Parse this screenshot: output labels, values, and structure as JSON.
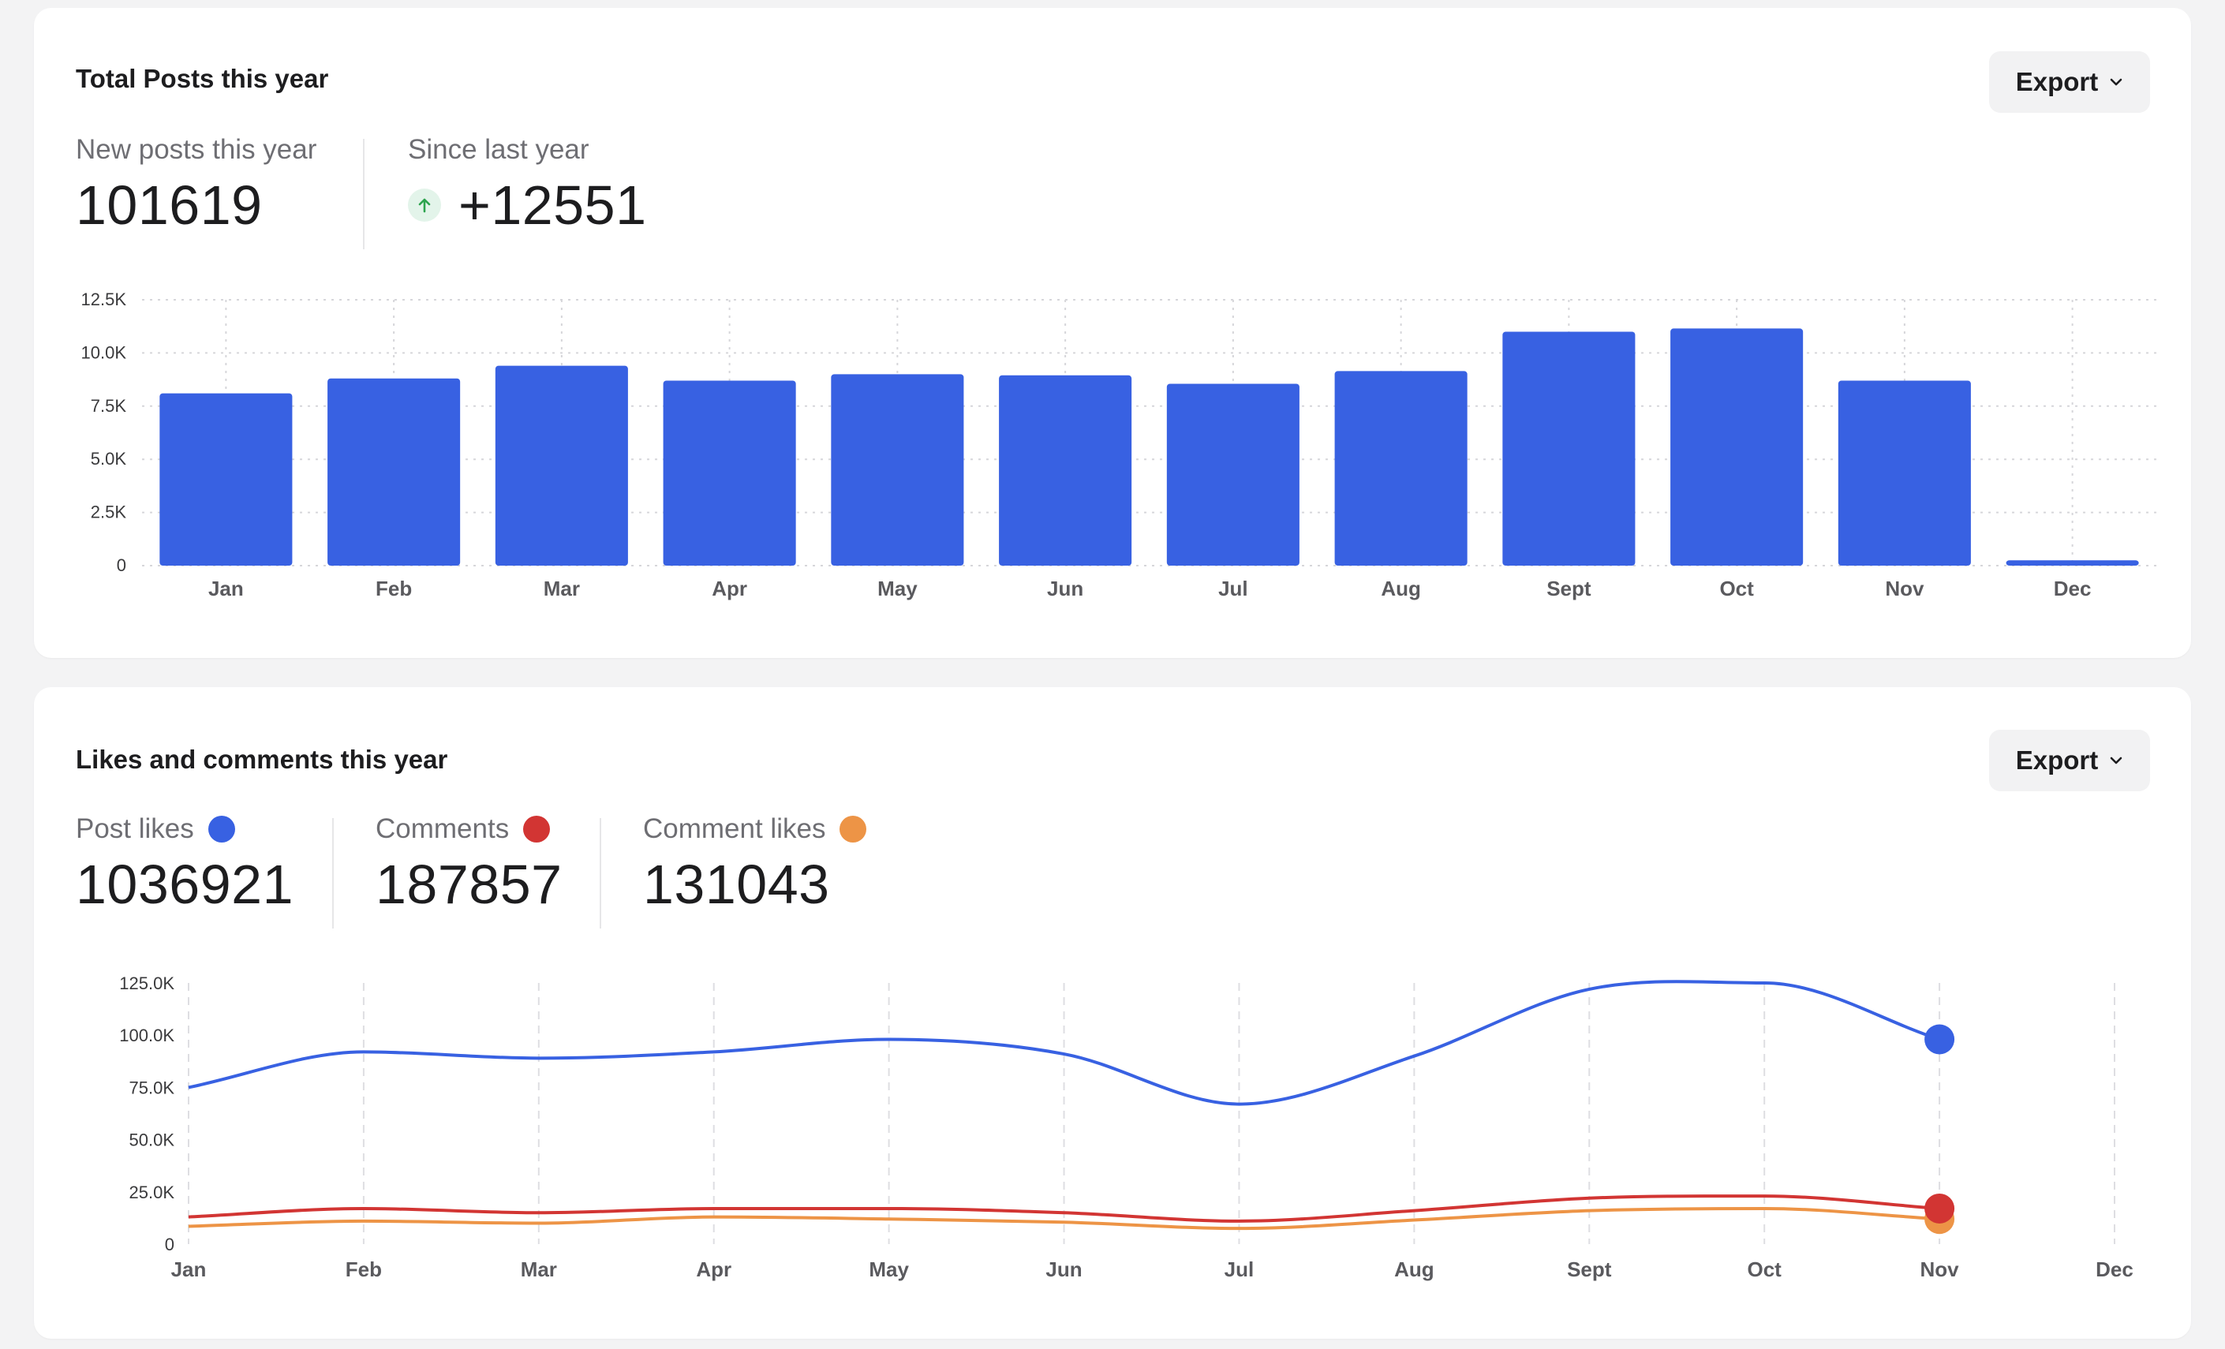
{
  "posts_card": {
    "title": "Total Posts this year",
    "export_label": "Export",
    "stats": {
      "new_posts_label": "New posts this year",
      "new_posts_value": "101619",
      "since_label": "Since last year",
      "since_value": "+12551"
    }
  },
  "engagement_card": {
    "title": "Likes and comments this year",
    "export_label": "Export",
    "stats": [
      {
        "label": "Post likes",
        "value": "1036921",
        "color": "#3861e2"
      },
      {
        "label": "Comments",
        "value": "187857",
        "color": "#d23533"
      },
      {
        "label": "Comment likes",
        "value": "131043",
        "color": "#ed9446"
      }
    ]
  },
  "colors": {
    "bar": "#3861e2",
    "post_likes": "#3861e2",
    "comments": "#d23533",
    "comment_likes": "#ed9446",
    "up_arrow": "#2da44e"
  },
  "chart_data": [
    {
      "type": "bar",
      "categories": [
        "Jan",
        "Feb",
        "Mar",
        "Apr",
        "May",
        "Jun",
        "Jul",
        "Aug",
        "Sept",
        "Oct",
        "Nov",
        "Dec"
      ],
      "values": [
        8100,
        8800,
        9400,
        8700,
        9000,
        8950,
        8550,
        9150,
        11000,
        11150,
        8700,
        250
      ],
      "ylim": [
        0,
        12500
      ],
      "yticks": [
        0,
        2500,
        5000,
        7500,
        10000,
        12500
      ],
      "ytick_labels": [
        "0",
        "2.5K",
        "5.0K",
        "7.5K",
        "10.0K",
        "12.5K"
      ],
      "grid": true
    },
    {
      "type": "line",
      "categories": [
        "Jan",
        "Feb",
        "Mar",
        "Apr",
        "May",
        "Jun",
        "Jul",
        "Aug",
        "Sept",
        "Oct",
        "Nov",
        "Dec"
      ],
      "series": [
        {
          "name": "Post likes",
          "values": [
            75000,
            92000,
            89000,
            92000,
            98000,
            91000,
            67000,
            90000,
            122000,
            125000,
            98000,
            null
          ]
        },
        {
          "name": "Comments",
          "values": [
            13000,
            17000,
            15000,
            17000,
            17000,
            15000,
            11000,
            16000,
            22000,
            23000,
            17000,
            null
          ]
        },
        {
          "name": "Comment likes",
          "values": [
            8500,
            11000,
            10000,
            13000,
            12000,
            10500,
            7500,
            11500,
            16000,
            17000,
            12000,
            null
          ]
        }
      ],
      "ylim": [
        0,
        125000
      ],
      "yticks": [
        0,
        25000,
        50000,
        75000,
        100000,
        125000
      ],
      "ytick_labels": [
        "0",
        "25.0K",
        "50.0K",
        "75.0K",
        "100.0K",
        "125.0K"
      ],
      "grid": true
    }
  ]
}
